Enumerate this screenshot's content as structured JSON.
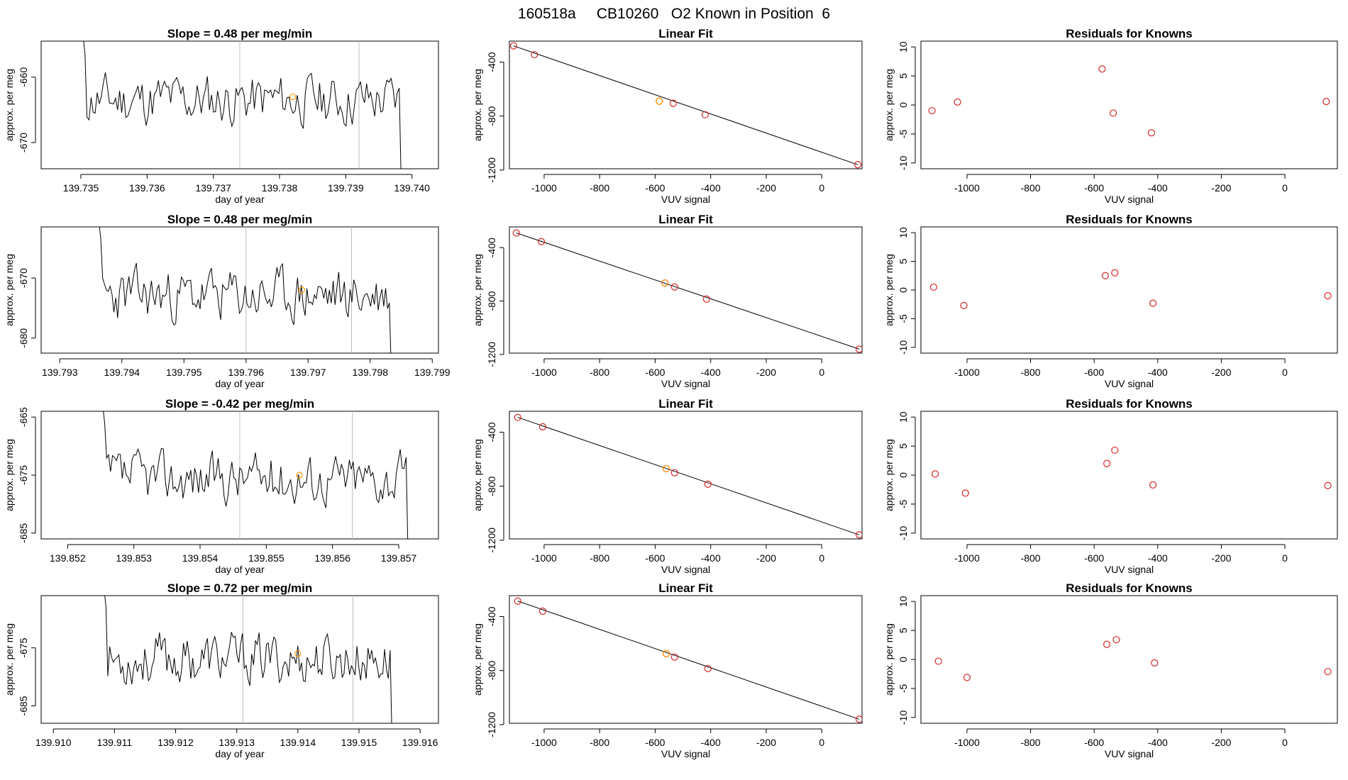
{
  "page_title": "160518a     CB10260   O2 Known in Position  6",
  "colors": {
    "line": "#000000",
    "point": "#d62728",
    "highlight": "#ff9900",
    "vline": "#bdbdbd"
  },
  "chart_data": [
    {
      "type": "line",
      "panel": "time-series-1",
      "title": "Slope =  0.48  per meg/min",
      "xlabel": "day of year",
      "ylabel": "approx. per meg",
      "xlim": [
        139.7344,
        139.7404
      ],
      "ylim": [
        -674,
        -654.5
      ],
      "xticks": [
        139.735,
        139.736,
        139.737,
        139.738,
        139.739,
        139.74
      ],
      "xtick_labels": [
        "139.735",
        "139.736",
        "139.737",
        "139.738",
        "139.739",
        "139.740"
      ],
      "yticks": [
        -660,
        -670
      ],
      "ytick_labels": [
        "-660",
        "-670"
      ],
      "vlines": [
        139.7374,
        139.7392
      ],
      "highlight": {
        "x": 139.7382,
        "y": -663
      },
      "x_start": 139.735,
      "x_end": 139.7399,
      "n_points": 160,
      "y_mean": -663.5,
      "y_amp": 4.5,
      "seed": 11
    },
    {
      "type": "line",
      "panel": "time-series-2",
      "title": "Slope =  0.48  per meg/min",
      "xlabel": "day of year",
      "ylabel": "approx. per meg",
      "xlim": [
        139.7927,
        139.7991
      ],
      "ylim": [
        -682.5,
        -661.5
      ],
      "xticks": [
        139.793,
        139.794,
        139.795,
        139.796,
        139.797,
        139.798,
        139.799
      ],
      "xtick_labels": [
        "139.793",
        "139.794",
        "139.795",
        "139.796",
        "139.797",
        "139.798",
        "139.799"
      ],
      "yticks": [
        -670,
        -680
      ],
      "ytick_labels": [
        "-670",
        "-680"
      ],
      "vlines": [
        139.796,
        139.7977
      ],
      "highlight": {
        "x": 139.7969,
        "y": -672
      },
      "x_start": 139.7936,
      "x_end": 139.7984,
      "n_points": 160,
      "y_mean": -673,
      "y_amp": 5,
      "seed": 23
    },
    {
      "type": "line",
      "panel": "time-series-3",
      "title": "Slope =  -0.42  per meg/min",
      "xlabel": "day of year",
      "ylabel": "approx. per meg",
      "xlim": [
        139.8516,
        139.8576
      ],
      "ylim": [
        -686,
        -664
      ],
      "xticks": [
        139.852,
        139.853,
        139.854,
        139.855,
        139.856,
        139.857
      ],
      "xtick_labels": [
        "139.852",
        "139.853",
        "139.854",
        "139.855",
        "139.856",
        "139.857"
      ],
      "yticks": [
        -665,
        -675,
        -685
      ],
      "ytick_labels": [
        "-665",
        "-675",
        "-685"
      ],
      "vlines": [
        139.8546,
        139.8563
      ],
      "highlight": {
        "x": 139.8555,
        "y": -675
      },
      "x_start": 139.8525,
      "x_end": 139.8572,
      "n_points": 160,
      "y_mean": -675.5,
      "y_amp": 5,
      "seed": 37
    },
    {
      "type": "line",
      "panel": "time-series-4",
      "title": "Slope =  0.72  per meg/min",
      "xlabel": "day of year",
      "ylabel": "approx. per meg",
      "xlim": [
        139.9098,
        139.9163
      ],
      "ylim": [
        -688,
        -666
      ],
      "xticks": [
        139.91,
        139.911,
        139.912,
        139.913,
        139.914,
        139.915,
        139.916
      ],
      "xtick_labels": [
        "139.910",
        "139.911",
        "139.912",
        "139.913",
        "139.914",
        "139.915",
        "139.916"
      ],
      "yticks": [
        -675,
        -685
      ],
      "ytick_labels": [
        "-675",
        "-685"
      ],
      "vlines": [
        139.9131,
        139.9149
      ],
      "highlight": {
        "x": 139.914,
        "y": -676
      },
      "x_start": 139.9108,
      "x_end": 139.9156,
      "n_points": 160,
      "y_mean": -677,
      "y_amp": 5,
      "seed": 53
    },
    {
      "type": "scatter",
      "panel": "linear-fit-1",
      "title": "Linear Fit",
      "xlabel": "VUV signal",
      "ylabel": "approx. per meg",
      "xlim": [
        -1125,
        145
      ],
      "ylim": [
        -1190,
        -245
      ],
      "xticks": [
        -1000,
        -800,
        -600,
        -400,
        -200,
        0
      ],
      "xtick_labels": [
        "-1000",
        "-800",
        "-600",
        "-400",
        "-200",
        "0"
      ],
      "yticks": [
        -400,
        -800,
        -1200
      ],
      "ytick_labels": [
        "-400",
        "-800",
        "-1200"
      ],
      "points": [
        [
          -1110,
          -280
        ],
        [
          -1035,
          -345
        ],
        [
          -585,
          -690
        ],
        [
          -535,
          -705
        ],
        [
          -420,
          -790
        ],
        [
          130,
          -1160
        ]
      ],
      "highlight": {
        "x": -585,
        "y": -690
      },
      "fit_line": [
        [
          -1110,
          -280
        ],
        [
          130,
          -1160
        ]
      ]
    },
    {
      "type": "scatter",
      "panel": "linear-fit-2",
      "title": "Linear Fit",
      "xlabel": "VUV signal",
      "ylabel": "approx. per meg",
      "xlim": [
        -1125,
        145
      ],
      "ylim": [
        -1190,
        -245
      ],
      "xticks": [
        -1000,
        -800,
        -600,
        -400,
        -200,
        0
      ],
      "xtick_labels": [
        "-1000",
        "-800",
        "-600",
        "-400",
        "-200",
        "0"
      ],
      "yticks": [
        -400,
        -800,
        -1200
      ],
      "ytick_labels": [
        "-400",
        "-800",
        "-1200"
      ],
      "points": [
        [
          -1100,
          -290
        ],
        [
          -1010,
          -355
        ],
        [
          -565,
          -665
        ],
        [
          -530,
          -695
        ],
        [
          -415,
          -785
        ],
        [
          135,
          -1160
        ]
      ],
      "highlight": {
        "x": -565,
        "y": -665
      },
      "fit_line": [
        [
          -1100,
          -290
        ],
        [
          135,
          -1160
        ]
      ]
    },
    {
      "type": "scatter",
      "panel": "linear-fit-3",
      "title": "Linear Fit",
      "xlabel": "VUV signal",
      "ylabel": "approx. per meg",
      "xlim": [
        -1125,
        145
      ],
      "ylim": [
        -1190,
        -245
      ],
      "xticks": [
        -1000,
        -800,
        -600,
        -400,
        -200,
        0
      ],
      "xtick_labels": [
        "-1000",
        "-800",
        "-600",
        "-400",
        "-200",
        "0"
      ],
      "yticks": [
        -400,
        -800,
        -1200
      ],
      "ytick_labels": [
        "-400",
        "-800",
        "-1200"
      ],
      "points": [
        [
          -1095,
          -290
        ],
        [
          -1005,
          -360
        ],
        [
          -560,
          -670
        ],
        [
          -530,
          -700
        ],
        [
          -410,
          -785
        ],
        [
          135,
          -1160
        ]
      ],
      "highlight": {
        "x": -560,
        "y": -670
      },
      "fit_line": [
        [
          -1095,
          -290
        ],
        [
          135,
          -1160
        ]
      ]
    },
    {
      "type": "scatter",
      "panel": "linear-fit-4",
      "title": "Linear Fit",
      "xlabel": "VUV signal",
      "ylabel": "approx. per meg",
      "xlim": [
        -1125,
        145
      ],
      "ylim": [
        -1190,
        -245
      ],
      "xticks": [
        -1000,
        -800,
        -600,
        -400,
        -200,
        0
      ],
      "xtick_labels": [
        "-1000",
        "-800",
        "-600",
        "-400",
        "-200",
        "0"
      ],
      "yticks": [
        -400,
        -800,
        -1200
      ],
      "ytick_labels": [
        "-400",
        "-800",
        "-1200"
      ],
      "points": [
        [
          -1095,
          -285
        ],
        [
          -1005,
          -360
        ],
        [
          -560,
          -675
        ],
        [
          -530,
          -700
        ],
        [
          -410,
          -785
        ],
        [
          135,
          -1160
        ]
      ],
      "highlight": {
        "x": -560,
        "y": -675
      },
      "fit_line": [
        [
          -1095,
          -285
        ],
        [
          135,
          -1160
        ]
      ]
    },
    {
      "type": "scatter",
      "panel": "residuals-1",
      "title": "Residuals for Knowns",
      "xlabel": "VUV signal",
      "ylabel": "approx. per meg",
      "xlim": [
        -1145,
        165
      ],
      "ylim": [
        -11,
        11
      ],
      "xticks": [
        -1000,
        -800,
        -600,
        -400,
        -200,
        0
      ],
      "xtick_labels": [
        "-1000",
        "-800",
        "-600",
        "-400",
        "-200",
        "0"
      ],
      "yticks": [
        10,
        5,
        0,
        -5,
        -10
      ],
      "ytick_labels": [
        "10",
        "5",
        "0",
        "-5",
        "-10"
      ],
      "points": [
        [
          -1110,
          -1
        ],
        [
          -1030,
          0.5
        ],
        [
          -575,
          6.2
        ],
        [
          -540,
          -1.4
        ],
        [
          -420,
          -4.8
        ],
        [
          130,
          0.6
        ]
      ]
    },
    {
      "type": "scatter",
      "panel": "residuals-2",
      "title": "Residuals for Knowns",
      "xlabel": "VUV signal",
      "ylabel": "approx. per meg",
      "xlim": [
        -1145,
        165
      ],
      "ylim": [
        -11,
        11
      ],
      "xticks": [
        -1000,
        -800,
        -600,
        -400,
        -200,
        0
      ],
      "xtick_labels": [
        "-1000",
        "-800",
        "-600",
        "-400",
        "-200",
        "0"
      ],
      "yticks": [
        10,
        5,
        0,
        -5,
        -10
      ],
      "ytick_labels": [
        "10",
        "5",
        "0",
        "-5",
        "-10"
      ],
      "points": [
        [
          -1105,
          0.5
        ],
        [
          -1010,
          -2.7
        ],
        [
          -565,
          2.5
        ],
        [
          -535,
          3.0
        ],
        [
          -415,
          -2.3
        ],
        [
          135,
          -1
        ]
      ]
    },
    {
      "type": "scatter",
      "panel": "residuals-3",
      "title": "Residuals for Knowns",
      "xlabel": "VUV signal",
      "ylabel": "approx. per meg",
      "xlim": [
        -1145,
        165
      ],
      "ylim": [
        -11,
        11
      ],
      "xticks": [
        -1000,
        -800,
        -600,
        -400,
        -200,
        0
      ],
      "xtick_labels": [
        "-1000",
        "-800",
        "-600",
        "-400",
        "-200",
        "0"
      ],
      "yticks": [
        10,
        5,
        0,
        -5,
        -10
      ],
      "ytick_labels": [
        "10",
        "5",
        "0",
        "-5",
        "-10"
      ],
      "points": [
        [
          -1100,
          0.2
        ],
        [
          -1005,
          -3.1
        ],
        [
          -560,
          2.0
        ],
        [
          -535,
          4.3
        ],
        [
          -415,
          -1.7
        ],
        [
          135,
          -1.8
        ]
      ]
    },
    {
      "type": "scatter",
      "panel": "residuals-4",
      "title": "Residuals for Knowns",
      "xlabel": "VUV signal",
      "ylabel": "approx. per meg",
      "xlim": [
        -1145,
        165
      ],
      "ylim": [
        -11,
        11
      ],
      "xticks": [
        -1000,
        -800,
        -600,
        -400,
        -200,
        0
      ],
      "xtick_labels": [
        "-1000",
        "-800",
        "-600",
        "-400",
        "-200",
        "0"
      ],
      "yticks": [
        10,
        5,
        0,
        -5,
        -10
      ],
      "ytick_labels": [
        "10",
        "5",
        "0",
        "-5",
        "-10"
      ],
      "points": [
        [
          -1090,
          -0.3
        ],
        [
          -1000,
          -3.1
        ],
        [
          -560,
          2.6
        ],
        [
          -530,
          3.4
        ],
        [
          -410,
          -0.6
        ],
        [
          135,
          -2.1
        ]
      ]
    }
  ]
}
